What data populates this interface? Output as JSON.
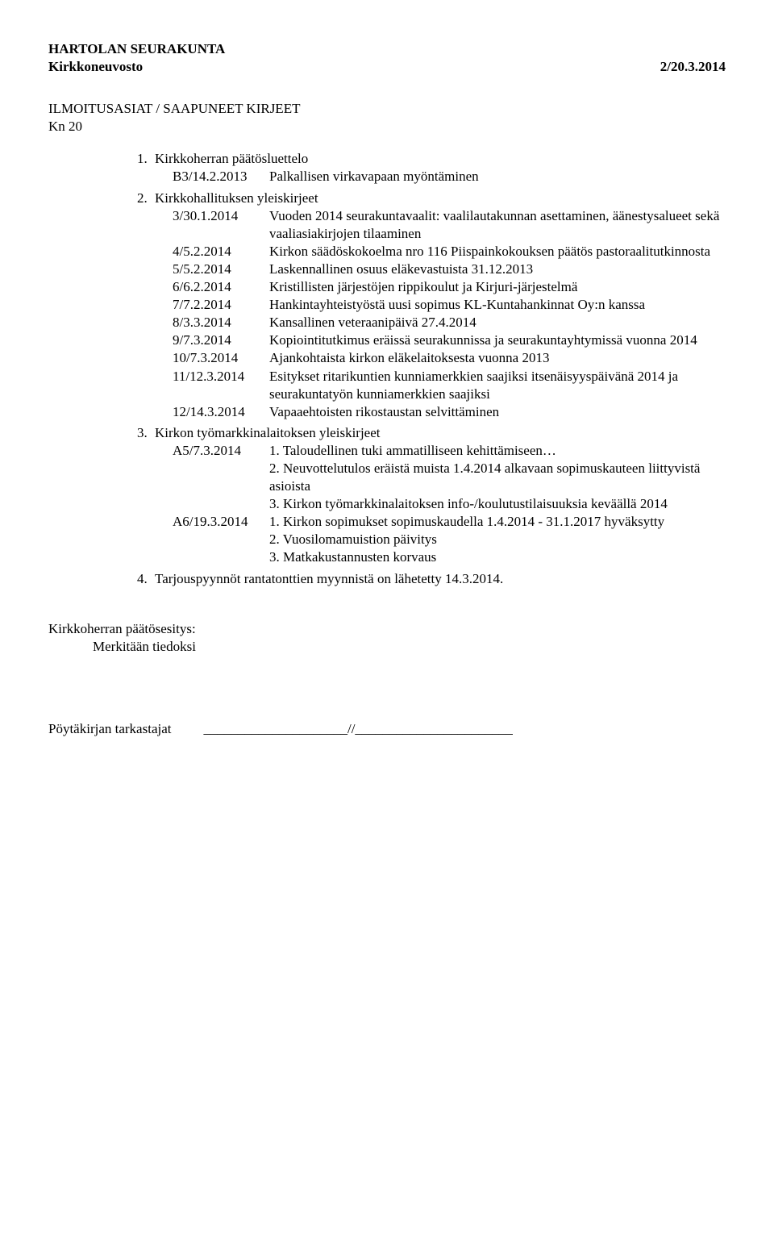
{
  "header": {
    "org": "HARTOLAN SEURAKUNTA",
    "body": "Kirkkoneuvosto",
    "ref": "2/20.3.2014"
  },
  "section": {
    "title": "ILMOITUSASIAT / SAAPUNEET KIRJEET",
    "kn": "Kn 20"
  },
  "items": [
    {
      "n": "1.",
      "label": "Kirkkoherran päätösluettelo",
      "rows": [
        {
          "k": "B3/14.2.2013",
          "v": "Palkallisen virkavapaan myöntäminen"
        }
      ]
    },
    {
      "n": "2.",
      "label": "Kirkkohallituksen yleiskirjeet",
      "rows": [
        {
          "k": "3/30.1.2014",
          "v": "Vuoden 2014 seurakuntavaalit: vaalilautakunnan asettaminen, äänestysalueet sekä vaaliasiakirjojen tilaaminen"
        },
        {
          "k": "4/5.2.2014",
          "v": "Kirkon säädöskokoelma nro 116 Piispainkokouksen päätös pastoraalitutkinnosta"
        },
        {
          "k": "5/5.2.2014",
          "v": "Laskennallinen osuus eläkevastuista 31.12.2013"
        },
        {
          "k": "6/6.2.2014",
          "v": "Kristillisten järjestöjen rippikoulut ja Kirjuri-järjestelmä"
        },
        {
          "k": "7/7.2.2014",
          "v": "Hankintayhteistyöstä uusi sopimus KL-Kuntahankinnat Oy:n kanssa"
        },
        {
          "k": "8/3.3.2014",
          "v": "Kansallinen veteraanipäivä 27.4.2014"
        },
        {
          "k": "9/7.3.2014",
          "v": "Kopiointitutkimus eräissä seurakunnissa ja seurakuntayhtymissä vuonna 2014"
        },
        {
          "k": "10/7.3.2014",
          "v": "Ajankohtaista kirkon eläkelaitoksesta vuonna 2013"
        },
        {
          "k": "11/12.3.2014",
          "v": "Esitykset ritarikuntien kunniamerkkien saajiksi itsenäisyyspäivänä 2014 ja seurakuntatyön kunniamerkkien saajiksi"
        },
        {
          "k": "12/14.3.2014",
          "v": "Vapaaehtoisten rikostaustan selvittäminen"
        }
      ]
    },
    {
      "n": "3.",
      "label": "Kirkon työmarkkinalaitoksen yleiskirjeet",
      "rows": [
        {
          "k": "A5/7.3.2014",
          "v": "1. Taloudellinen tuki ammatilliseen kehittämiseen…"
        },
        {
          "k": "",
          "v": "2. Neuvottelutulos eräistä muista 1.4.2014 alkavaan sopimuskauteen liittyvistä asioista"
        },
        {
          "k": "",
          "v": "3. Kirkon työmarkkinalaitoksen info-/koulutustilaisuuksia keväällä 2014"
        },
        {
          "k": "A6/19.3.2014",
          "v": "1. Kirkon sopimukset sopimuskaudella 1.4.2014 - 31.1.2017 hyväksytty"
        },
        {
          "k": "",
          "v": "2. Vuosilomamuistion päivitys"
        },
        {
          "k": "",
          "v": "3. Matkakustannusten korvaus"
        }
      ]
    },
    {
      "n": "4.",
      "label": "Tarjouspyynnöt rantatonttien myynnistä on lähetetty 14.3.2014.",
      "rows": []
    }
  ],
  "proposal": {
    "heading": "Kirkkoherran päätösesitys:",
    "text": "Merkitään tiedoksi"
  },
  "footer": {
    "label": "Pöytäkirjan tarkastajat",
    "line": "_____________________//_______________________"
  }
}
